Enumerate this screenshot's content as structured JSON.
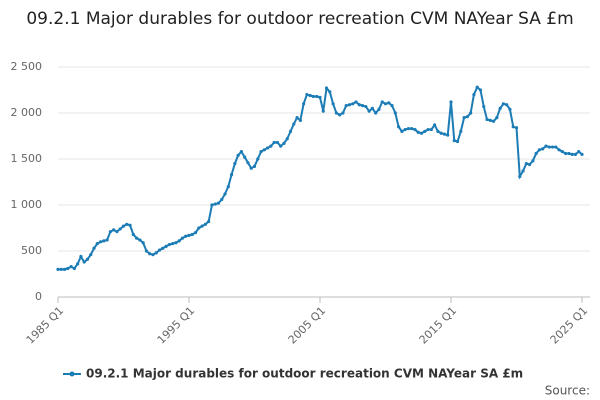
{
  "chart_data": {
    "type": "line",
    "title": "09.2.1 Major durables for outdoor recreation CVM NAYear SA £m",
    "source": "Source:",
    "categories": [
      "1985 Q1",
      null,
      null,
      null,
      null,
      null,
      null,
      null,
      null,
      null,
      null,
      null,
      null,
      null,
      null,
      null,
      null,
      null,
      null,
      null,
      null,
      null,
      null,
      null,
      null,
      null,
      null,
      null,
      null,
      null,
      null,
      null,
      null,
      null,
      null,
      null,
      null,
      null,
      null,
      null,
      "1995 Q1",
      null,
      null,
      null,
      null,
      null,
      null,
      null,
      null,
      null,
      null,
      null,
      null,
      null,
      null,
      null,
      null,
      null,
      null,
      null,
      null,
      null,
      null,
      null,
      null,
      null,
      null,
      null,
      null,
      null,
      null,
      null,
      null,
      null,
      null,
      null,
      null,
      null,
      null,
      null,
      "2005 Q1",
      null,
      null,
      null,
      null,
      null,
      null,
      null,
      null,
      null,
      null,
      null,
      null,
      null,
      null,
      null,
      null,
      null,
      null,
      null,
      null,
      null,
      null,
      null,
      null,
      null,
      null,
      null,
      null,
      null,
      null,
      null,
      null,
      null,
      null,
      null,
      null,
      null,
      null,
      null,
      "2015 Q1",
      null,
      null,
      null,
      null,
      null,
      null,
      null,
      null,
      null,
      null,
      null,
      null,
      null,
      null,
      null,
      null,
      null,
      null,
      null,
      null,
      null,
      null,
      null,
      null,
      null,
      null,
      null,
      null,
      null,
      null,
      null,
      null,
      null,
      null,
      null,
      null,
      null,
      null,
      null,
      "2025 Q1"
    ],
    "series": [
      {
        "name": "09.2.1 Major durables for outdoor recreation CVM NAYear SA £m",
        "color": "#1c7cb6",
        "values": [
          300,
          300,
          300,
          310,
          330,
          310,
          360,
          440,
          380,
          410,
          460,
          530,
          580,
          600,
          610,
          620,
          710,
          730,
          710,
          740,
          770,
          790,
          780,
          680,
          640,
          620,
          590,
          500,
          470,
          460,
          480,
          510,
          530,
          550,
          570,
          580,
          590,
          610,
          640,
          660,
          670,
          680,
          700,
          750,
          770,
          790,
          820,
          1000,
          1010,
          1020,
          1060,
          1120,
          1200,
          1330,
          1450,
          1540,
          1580,
          1520,
          1460,
          1400,
          1420,
          1500,
          1580,
          1600,
          1620,
          1640,
          1680,
          1680,
          1640,
          1670,
          1720,
          1800,
          1880,
          1950,
          1920,
          2100,
          2200,
          2190,
          2180,
          2180,
          2170,
          2020,
          2270,
          2230,
          2100,
          2000,
          1980,
          2000,
          2080,
          2090,
          2100,
          2120,
          2090,
          2080,
          2070,
          2020,
          2050,
          2000,
          2040,
          2120,
          2100,
          2110,
          2080,
          2000,
          1850,
          1800,
          1820,
          1830,
          1830,
          1820,
          1790,
          1780,
          1800,
          1820,
          1820,
          1870,
          1800,
          1780,
          1770,
          1760,
          2120,
          1700,
          1690,
          1800,
          1950,
          1960,
          2000,
          2200,
          2280,
          2250,
          2070,
          1930,
          1920,
          1910,
          1950,
          2050,
          2100,
          2090,
          2040,
          1850,
          1840,
          1310,
          1370,
          1450,
          1440,
          1480,
          1560,
          1600,
          1610,
          1640,
          1630,
          1630,
          1630,
          1600,
          1580,
          1560,
          1560,
          1550,
          1550,
          1580,
          1550
        ]
      }
    ],
    "ylim": [
      0,
      2500
    ],
    "yticks": [
      0,
      500,
      {
        "value": 1000,
        "label": "1 000"
      },
      {
        "value": 1500,
        "label": "1 500"
      },
      {
        "value": 2000,
        "label": "2 000"
      },
      {
        "value": 2500,
        "label": "2 500"
      }
    ],
    "grid": true
  }
}
